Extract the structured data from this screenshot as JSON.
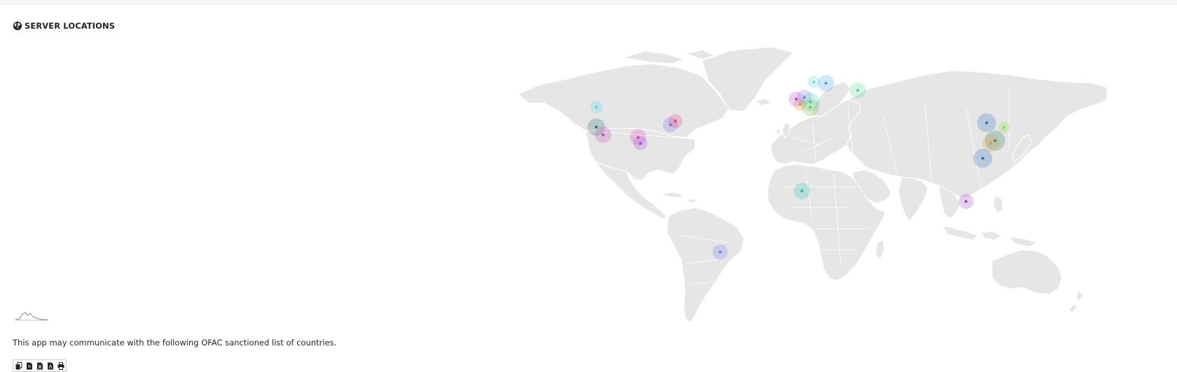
{
  "panel": {
    "title": "SERVER LOCATIONS",
    "title_icon": "globe-icon",
    "notice": "This app may communicate with the following OFAC sanctioned list of countries."
  },
  "map": {
    "land_color": "#e6e6e6",
    "markers": [
      {
        "name": "seattle",
        "lon": -122.3,
        "lat": 47.6,
        "color": "#4fd6f0",
        "size": 1
      },
      {
        "name": "san-francisco",
        "lon": -122.4,
        "lat": 37.8,
        "color": "#2e6b73",
        "size": 1.4
      },
      {
        "name": "los-angeles",
        "lon": -118.2,
        "lat": 34.0,
        "color": "#c050b0",
        "size": 1.3
      },
      {
        "name": "dallas",
        "lon": -96.8,
        "lat": 32.8,
        "color": "#e040c0",
        "size": 1.3
      },
      {
        "name": "houston",
        "lon": -95.4,
        "lat": 29.8,
        "color": "#a050e0",
        "size": 1.1
      },
      {
        "name": "washington",
        "lon": -77.0,
        "lat": 38.9,
        "color": "#7070f0",
        "size": 1.2
      },
      {
        "name": "new-york",
        "lon": -74.0,
        "lat": 40.7,
        "color": "#f04080",
        "size": 1.1
      },
      {
        "name": "sao-paulo",
        "lon": -46.6,
        "lat": -23.5,
        "color": "#6080f0",
        "size": 1.2
      },
      {
        "name": "london",
        "lon": -0.1,
        "lat": 51.5,
        "color": "#c040c0",
        "size": 1.2
      },
      {
        "name": "paris",
        "lon": 2.3,
        "lat": 48.8,
        "color": "#f09040",
        "size": 1
      },
      {
        "name": "amsterdam",
        "lon": 4.9,
        "lat": 52.4,
        "color": "#9070f0",
        "size": 1.2
      },
      {
        "name": "frankfurt",
        "lon": 8.7,
        "lat": 50.1,
        "color": "#40d0c0",
        "size": 1.5
      },
      {
        "name": "zurich",
        "lon": 8.5,
        "lat": 47.4,
        "color": "#80c040",
        "size": 1.4
      },
      {
        "name": "stockholm",
        "lon": 18.1,
        "lat": 59.3,
        "color": "#40a0e0",
        "size": 1.3
      },
      {
        "name": "oslo",
        "lon": 10.7,
        "lat": 59.9,
        "color": "#60e0e0",
        "size": 1
      },
      {
        "name": "moscow",
        "lon": 37.6,
        "lat": 55.8,
        "color": "#50d090",
        "size": 1.3
      },
      {
        "name": "lagos",
        "lon": 3.4,
        "lat": 6.5,
        "color": "#20c0b0",
        "size": 1.3
      },
      {
        "name": "beijing",
        "lon": 116.4,
        "lat": 39.9,
        "color": "#3070c0",
        "size": 1.5
      },
      {
        "name": "shanghai",
        "lon": 121.5,
        "lat": 31.2,
        "color": "#208070",
        "size": 1.6
      },
      {
        "name": "hangzhou",
        "lon": 119.0,
        "lat": 30.0,
        "color": "#e0a040",
        "size": 1.4
      },
      {
        "name": "shenzhen",
        "lon": 114.1,
        "lat": 22.5,
        "color": "#3070c0",
        "size": 1.5
      },
      {
        "name": "seoul",
        "lon": 127.0,
        "lat": 37.6,
        "color": "#80e040",
        "size": 0.9
      },
      {
        "name": "singapore",
        "lon": 103.8,
        "lat": 1.35,
        "color": "#a040c0",
        "size": 1.2
      }
    ]
  },
  "export_buttons": [
    {
      "name": "copy-button",
      "icon": "copy-icon"
    },
    {
      "name": "csv-button",
      "icon": "file-csv-icon"
    },
    {
      "name": "excel-button",
      "icon": "file-excel-icon"
    },
    {
      "name": "pdf-button",
      "icon": "file-pdf-icon"
    },
    {
      "name": "print-button",
      "icon": "print-icon"
    }
  ]
}
